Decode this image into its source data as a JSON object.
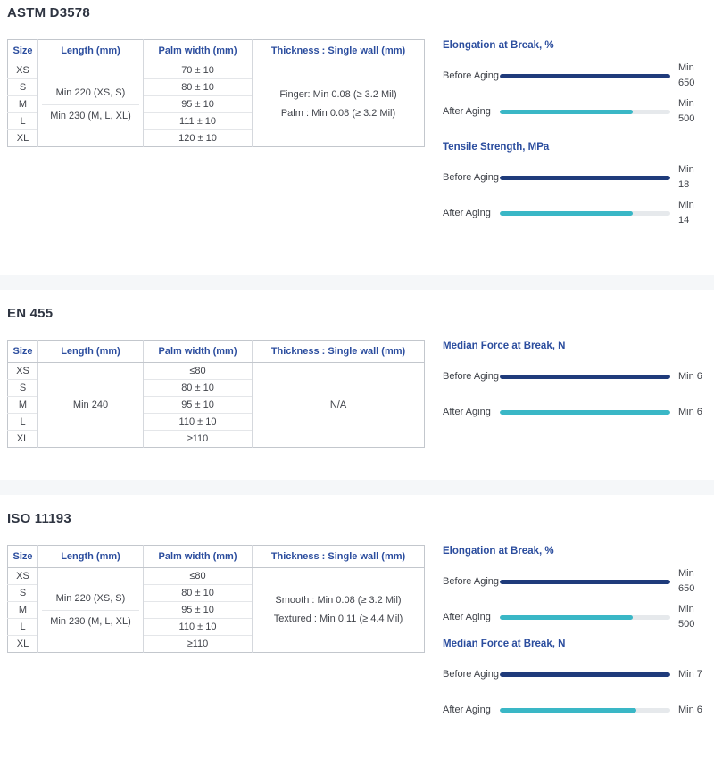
{
  "colors": {
    "accent_blue": "#2b4d9e",
    "navy_bar": "#1f3b7b",
    "teal_bar": "#3ab7c6",
    "bar_track": "#e6e9ec",
    "title_text": "#2f3542",
    "body_text": "#40434a"
  },
  "sections": [
    {
      "id": "astm-d3578",
      "title": "ASTM D3578",
      "table": {
        "headers": [
          "Size",
          "Length (mm)",
          "Palm width (mm)",
          "Thickness : Single wall (mm)"
        ],
        "sizes": [
          "XS",
          "S",
          "M",
          "L",
          "XL"
        ],
        "length_lines": [
          "Min 220 (XS, S)",
          "Min 230 (M, L, XL)"
        ],
        "length_divider": true,
        "palm_widths": [
          "70 ± 10",
          "80 ± 10",
          "95 ± 10",
          "111 ± 10",
          "120 ± 10"
        ],
        "thickness_lines": [
          "Finger: Min 0.08 (≥ 3.2 Mil)",
          "Palm :  Min 0.08 (≥ 3.2 Mil)"
        ]
      },
      "charts": [
        {
          "title": "Elongation at Break, %",
          "rows": [
            {
              "label": "Before Aging",
              "bar": "navy",
              "fill_pct": 100,
              "value_lines": [
                "Min",
                "650"
              ]
            },
            {
              "label": "After Aging",
              "bar": "teal",
              "fill_pct": 78,
              "value_lines": [
                "Min",
                "500"
              ]
            }
          ]
        },
        {
          "title": "Tensile Strength, MPa",
          "rows": [
            {
              "label": "Before Aging",
              "bar": "navy",
              "fill_pct": 100,
              "value_lines": [
                "Min",
                "18"
              ]
            },
            {
              "label": "After Aging",
              "bar": "teal",
              "fill_pct": 78,
              "value_lines": [
                "Min",
                "14"
              ]
            }
          ]
        }
      ]
    },
    {
      "id": "en-455",
      "title": "EN 455",
      "table": {
        "headers": [
          "Size",
          "Length (mm)",
          "Palm width (mm)",
          "Thickness : Single wall (mm)"
        ],
        "sizes": [
          "XS",
          "S",
          "M",
          "L",
          "XL"
        ],
        "length_lines": [
          "Min 240"
        ],
        "length_divider": false,
        "palm_widths": [
          "≤80",
          "80 ± 10",
          "95 ± 10",
          "110 ± 10",
          "≥110"
        ],
        "thickness_lines": [
          "N/A"
        ]
      },
      "charts": [
        {
          "title": "Median Force at Break, N",
          "rows": [
            {
              "label": "Before Aging",
              "bar": "navy",
              "fill_pct": 100,
              "value_lines": [
                "Min 6"
              ]
            },
            {
              "label": "After Aging",
              "bar": "teal",
              "fill_pct": 100,
              "value_lines": [
                "Min 6"
              ]
            }
          ]
        }
      ]
    },
    {
      "id": "iso-11193",
      "title": "ISO 11193",
      "table": {
        "headers": [
          "Size",
          "Length (mm)",
          "Palm width (mm)",
          "Thickness : Single wall (mm)"
        ],
        "sizes": [
          "XS",
          "S",
          "M",
          "L",
          "XL"
        ],
        "length_lines": [
          "Min 220 (XS, S)",
          "Min 230 (M, L, XL)"
        ],
        "length_divider": true,
        "palm_widths": [
          "≤80",
          "80 ± 10",
          "95 ± 10",
          "110 ± 10",
          "≥110"
        ],
        "thickness_lines": [
          "Smooth : Min 0.08 (≥ 3.2 Mil)",
          "Textured : Min 0.11 (≥ 4.4 Mil)"
        ]
      },
      "charts": [
        {
          "title": "Elongation at Break, %",
          "rows": [
            {
              "label": "Before Aging",
              "bar": "navy",
              "fill_pct": 100,
              "value_lines": [
                "Min",
                "650"
              ]
            },
            {
              "label": "After Aging",
              "bar": "teal",
              "fill_pct": 78,
              "value_lines": [
                "Min",
                "500"
              ]
            }
          ]
        },
        {
          "title": "Median Force at Break, N",
          "rows": [
            {
              "label": "Before Aging",
              "bar": "navy",
              "fill_pct": 100,
              "value_lines": [
                "Min 7"
              ]
            },
            {
              "label": "After Aging",
              "bar": "teal",
              "fill_pct": 80,
              "value_lines": [
                "Min 6"
              ]
            }
          ]
        }
      ]
    }
  ]
}
